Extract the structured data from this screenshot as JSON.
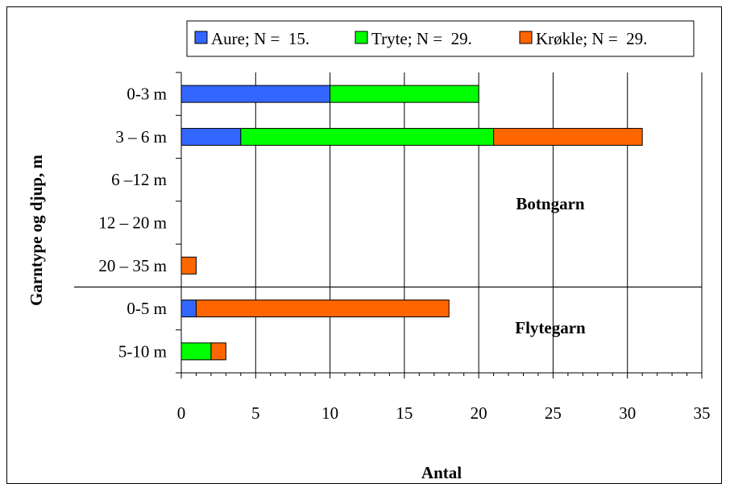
{
  "chart_data": {
    "type": "bar",
    "orientation": "horizontal",
    "stacked": true,
    "categories": [
      "0-3 m",
      "3 – 6 m",
      "6 –12 m",
      "12 – 20 m",
      "20 – 35 m",
      "0-5 m",
      "5-10 m"
    ],
    "series": [
      {
        "name": "Aure; N =  15.",
        "color": "#3366ff",
        "values": [
          10,
          4,
          0,
          0,
          0,
          1,
          0
        ]
      },
      {
        "name": "Tryte; N =  29.",
        "color": "#00ff00",
        "values": [
          10,
          17,
          0,
          0,
          0,
          0,
          2
        ]
      },
      {
        "name": "Krøkle; N =  29.",
        "color": "#ff6600",
        "values": [
          0,
          10,
          0,
          0,
          1,
          17,
          1
        ]
      }
    ],
    "xlabel": "Antal",
    "ylabel": "Garntype og djup, m",
    "xlim": [
      0,
      35
    ],
    "xticks": [
      "0",
      "5",
      "10",
      "15",
      "20",
      "25",
      "30",
      "35"
    ],
    "grid": "vertical",
    "legend": "top",
    "annotations": [
      {
        "text": "Botngarn"
      },
      {
        "text": "Flytegarn"
      }
    ],
    "group_separator_after_category": 4
  }
}
